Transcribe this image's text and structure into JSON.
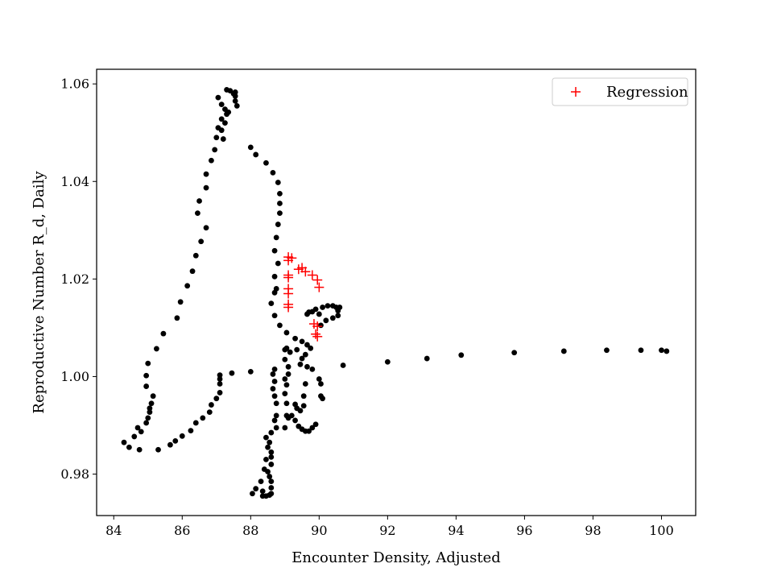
{
  "chart_data": {
    "type": "scatter",
    "title": "",
    "xlabel": "Encounter Density, Adjusted",
    "ylabel": "Reproductive Number R_d, Daily",
    "xlim": [
      83.5,
      101.0
    ],
    "ylim": [
      0.9715,
      1.063
    ],
    "xticks": [
      84,
      86,
      88,
      90,
      92,
      94,
      96,
      98,
      100
    ],
    "yticks": [
      0.98,
      1.0,
      1.02,
      1.04,
      1.06
    ],
    "ytick_labels": [
      "0.98",
      "1.00",
      "1.02",
      "1.04",
      "1.06"
    ],
    "grid": false,
    "legend": {
      "position": "top-right",
      "entries": [
        "Regression"
      ]
    },
    "colors": {
      "observed": "#000000",
      "regression": "#ff0000"
    },
    "series": [
      {
        "name": "",
        "marker": "dot",
        "color": "#000000",
        "points": [
          [
            84.3,
            0.9865
          ],
          [
            84.45,
            0.9855
          ],
          [
            84.6,
            0.9877
          ],
          [
            84.7,
            0.9895
          ],
          [
            84.75,
            0.985
          ],
          [
            84.8,
            0.9887
          ],
          [
            84.95,
            0.9905
          ],
          [
            85.0,
            0.9915
          ],
          [
            85.05,
            0.9927
          ],
          [
            85.05,
            0.9935
          ],
          [
            85.1,
            0.9945
          ],
          [
            85.15,
            0.996
          ],
          [
            84.95,
            0.998
          ],
          [
            84.95,
            1.0002
          ],
          [
            85.0,
            1.0027
          ],
          [
            85.25,
            1.0057
          ],
          [
            85.45,
            1.0088
          ],
          [
            85.85,
            1.012
          ],
          [
            85.95,
            1.0153
          ],
          [
            86.15,
            1.0186
          ],
          [
            86.3,
            1.0216
          ],
          [
            86.4,
            1.0248
          ],
          [
            86.55,
            1.0277
          ],
          [
            86.7,
            1.0305
          ],
          [
            86.45,
            1.0335
          ],
          [
            86.5,
            1.036
          ],
          [
            86.7,
            1.0387
          ],
          [
            86.7,
            1.0415
          ],
          [
            86.85,
            1.0443
          ],
          [
            86.95,
            1.0465
          ],
          [
            87.0,
            1.049
          ],
          [
            87.05,
            1.051
          ],
          [
            87.15,
            1.0505
          ],
          [
            87.2,
            1.0487
          ],
          [
            87.25,
            1.052
          ],
          [
            87.15,
            1.0528
          ],
          [
            87.3,
            1.0538
          ],
          [
            87.25,
            1.0548
          ],
          [
            87.35,
            1.0542
          ],
          [
            87.15,
            1.0558
          ],
          [
            87.05,
            1.0572
          ],
          [
            87.3,
            1.0588
          ],
          [
            87.4,
            1.0586
          ],
          [
            87.5,
            1.058
          ],
          [
            87.55,
            1.0583
          ],
          [
            87.55,
            1.0575
          ],
          [
            87.55,
            1.0565
          ],
          [
            87.6,
            1.0555
          ],
          [
            85.3,
            0.985
          ],
          [
            85.65,
            0.986
          ],
          [
            85.8,
            0.9868
          ],
          [
            86.0,
            0.9878
          ],
          [
            86.25,
            0.9889
          ],
          [
            86.4,
            0.9905
          ],
          [
            86.6,
            0.9915
          ],
          [
            86.8,
            0.9927
          ],
          [
            86.85,
            0.9942
          ],
          [
            87.0,
            0.9955
          ],
          [
            87.1,
            0.9967
          ],
          [
            87.1,
            0.9985
          ],
          [
            87.1,
            0.9995
          ],
          [
            87.1,
            1.0003
          ],
          [
            87.45,
            1.0007
          ],
          [
            88.0,
            1.001
          ],
          [
            88.0,
            1.047
          ],
          [
            88.15,
            1.0455
          ],
          [
            88.45,
            1.0438
          ],
          [
            88.65,
            1.0418
          ],
          [
            88.8,
            1.0398
          ],
          [
            88.85,
            1.0375
          ],
          [
            88.85,
            1.0355
          ],
          [
            88.85,
            1.0335
          ],
          [
            88.8,
            1.0312
          ],
          [
            88.75,
            1.0285
          ],
          [
            88.7,
            1.0258
          ],
          [
            88.8,
            1.0232
          ],
          [
            88.7,
            1.0205
          ],
          [
            88.75,
            1.018
          ],
          [
            88.7,
            1.0172
          ],
          [
            88.6,
            1.015
          ],
          [
            88.7,
            1.0125
          ],
          [
            88.85,
            1.0105
          ],
          [
            89.05,
            1.009
          ],
          [
            89.3,
            1.0078
          ],
          [
            89.5,
            1.0072
          ],
          [
            89.65,
            1.0065
          ],
          [
            89.75,
            1.0058
          ],
          [
            89.65,
            1.0128
          ],
          [
            89.7,
            1.0132
          ],
          [
            89.8,
            1.0133
          ],
          [
            89.9,
            1.0138
          ],
          [
            90.0,
            1.0128
          ],
          [
            90.1,
            1.0142
          ],
          [
            90.25,
            1.0145
          ],
          [
            90.4,
            1.0145
          ],
          [
            90.5,
            1.0142
          ],
          [
            90.6,
            1.0142
          ],
          [
            90.55,
            1.0135
          ],
          [
            90.55,
            1.0125
          ],
          [
            90.4,
            1.012
          ],
          [
            90.2,
            1.0115
          ],
          [
            90.05,
            1.0105
          ],
          [
            89.05,
            1.0058
          ],
          [
            89.15,
            1.005
          ],
          [
            89.35,
            1.0055
          ],
          [
            89.6,
            1.0045
          ],
          [
            89.5,
            1.0037
          ],
          [
            89.45,
            1.0025
          ],
          [
            89.65,
            1.002
          ],
          [
            89.8,
            1.0015
          ],
          [
            90.0,
            0.9995
          ],
          [
            90.05,
            0.9985
          ],
          [
            90.05,
            0.996
          ],
          [
            90.1,
            0.9955
          ],
          [
            89.6,
            0.9985
          ],
          [
            89.55,
            0.996
          ],
          [
            89.55,
            0.994
          ],
          [
            89.45,
            0.993
          ],
          [
            89.35,
            0.9935
          ],
          [
            89.3,
            0.9943
          ],
          [
            89.3,
            0.991
          ],
          [
            89.4,
            0.9898
          ],
          [
            89.5,
            0.9892
          ],
          [
            89.6,
            0.9888
          ],
          [
            89.7,
            0.9888
          ],
          [
            89.8,
            0.9895
          ],
          [
            89.9,
            0.9902
          ],
          [
            89.2,
            0.992
          ],
          [
            88.7,
            1.0015
          ],
          [
            88.65,
            1.0005
          ],
          [
            88.7,
            0.999
          ],
          [
            88.65,
            0.9975
          ],
          [
            88.7,
            0.996
          ],
          [
            88.75,
            0.9945
          ],
          [
            88.75,
            0.992
          ],
          [
            88.7,
            0.991
          ],
          [
            88.75,
            0.9895
          ],
          [
            89.0,
            1.0055
          ],
          [
            89.0,
            1.0035
          ],
          [
            89.1,
            1.002
          ],
          [
            89.1,
            1.0005
          ],
          [
            89.0,
            0.9995
          ],
          [
            89.05,
            0.9983
          ],
          [
            89.0,
            0.9965
          ],
          [
            89.05,
            0.9945
          ],
          [
            89.05,
            0.992
          ],
          [
            89.1,
            0.9915
          ],
          [
            89.0,
            0.9895
          ],
          [
            88.6,
            0.9885
          ],
          [
            88.55,
            0.9865
          ],
          [
            88.5,
            0.9855
          ],
          [
            88.45,
            0.983
          ],
          [
            88.4,
            0.981
          ],
          [
            88.3,
            0.9785
          ],
          [
            88.15,
            0.977
          ],
          [
            88.05,
            0.976
          ],
          [
            88.35,
            0.9765
          ],
          [
            88.35,
            0.9755
          ],
          [
            88.45,
            0.9755
          ],
          [
            88.55,
            0.9757
          ],
          [
            88.6,
            0.976
          ],
          [
            88.6,
            0.9772
          ],
          [
            88.6,
            0.9785
          ],
          [
            88.55,
            0.9795
          ],
          [
            88.5,
            0.9805
          ],
          [
            88.6,
            0.982
          ],
          [
            88.6,
            0.9835
          ],
          [
            88.6,
            0.9845
          ],
          [
            88.45,
            0.9875
          ],
          [
            90.7,
            1.0023
          ],
          [
            92.0,
            1.003
          ],
          [
            93.15,
            1.0037
          ],
          [
            94.15,
            1.0044
          ],
          [
            95.7,
            1.0049
          ],
          [
            97.15,
            1.0052
          ],
          [
            98.4,
            1.0054
          ],
          [
            99.4,
            1.0054
          ],
          [
            100.0,
            1.0054
          ],
          [
            100.15,
            1.0052
          ]
        ]
      },
      {
        "name": "Regression",
        "marker": "plus",
        "color": "#ff0000",
        "points": [
          [
            89.1,
            1.0245
          ],
          [
            89.2,
            1.0243
          ],
          [
            89.1,
            1.0238
          ],
          [
            89.5,
            1.0223
          ],
          [
            89.4,
            1.022
          ],
          [
            89.6,
            1.0215
          ],
          [
            89.8,
            1.0208
          ],
          [
            89.95,
            1.0198
          ],
          [
            89.1,
            1.0208
          ],
          [
            89.1,
            1.0203
          ],
          [
            90.0,
            1.0183
          ],
          [
            89.1,
            1.018
          ],
          [
            89.1,
            1.017
          ],
          [
            89.1,
            1.0148
          ],
          [
            89.1,
            1.0142
          ],
          [
            89.85,
            1.0108
          ],
          [
            89.95,
            1.0103
          ],
          [
            89.9,
            1.0087
          ],
          [
            89.95,
            1.0082
          ]
        ]
      }
    ]
  }
}
